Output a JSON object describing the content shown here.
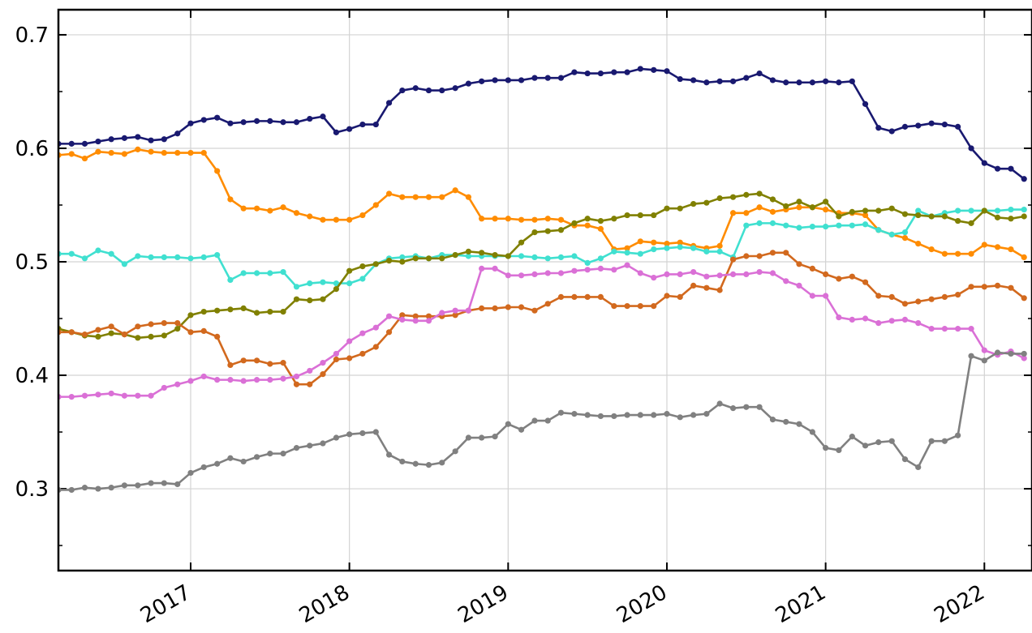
{
  "chart_data": {
    "type": "line",
    "x": [
      2016.167,
      2016.25,
      2016.333,
      2016.417,
      2016.5,
      2016.583,
      2016.667,
      2016.75,
      2016.833,
      2016.917,
      2017,
      2017.083,
      2017.167,
      2017.25,
      2017.333,
      2017.417,
      2017.5,
      2017.583,
      2017.667,
      2017.75,
      2017.833,
      2017.917,
      2018,
      2018.083,
      2018.167,
      2018.25,
      2018.333,
      2018.417,
      2018.5,
      2018.583,
      2018.667,
      2018.75,
      2018.833,
      2018.917,
      2019,
      2019.083,
      2019.167,
      2019.25,
      2019.333,
      2019.417,
      2019.5,
      2019.583,
      2019.667,
      2019.75,
      2019.833,
      2019.917,
      2020,
      2020.083,
      2020.167,
      2020.25,
      2020.333,
      2020.417,
      2020.5,
      2020.583,
      2020.667,
      2020.75,
      2020.833,
      2020.917,
      2021,
      2021.083,
      2021.167,
      2021.25,
      2021.333,
      2021.417,
      2021.5,
      2021.583,
      2021.667,
      2021.75,
      2021.833,
      2021.917,
      2022,
      2022.083,
      2022.167,
      2022.25
    ],
    "series": [
      {
        "color": "#191970",
        "values": [
          0.604,
          0.604,
          0.604,
          0.606,
          0.608,
          0.609,
          0.61,
          0.607,
          0.608,
          0.613,
          0.622,
          0.625,
          0.627,
          0.622,
          0.623,
          0.624,
          0.624,
          0.623,
          0.623,
          0.626,
          0.628,
          0.614,
          0.617,
          0.621,
          0.621,
          0.64,
          0.651,
          0.653,
          0.651,
          0.651,
          0.653,
          0.657,
          0.659,
          0.66,
          0.66,
          0.66,
          0.662,
          0.662,
          0.662,
          0.667,
          0.666,
          0.666,
          0.667,
          0.667,
          0.67,
          0.669,
          0.668,
          0.661,
          0.66,
          0.658,
          0.659,
          0.659,
          0.662,
          0.666,
          0.66,
          0.658,
          0.658,
          0.658,
          0.659,
          0.658,
          0.659,
          0.639,
          0.618,
          0.615,
          0.619,
          0.62,
          0.622,
          0.621,
          0.619,
          0.6,
          0.587,
          0.582,
          0.582,
          0.573
        ]
      },
      {
        "color": "#ff8c00",
        "values": [
          0.594,
          0.595,
          0.591,
          0.597,
          0.596,
          0.595,
          0.599,
          0.597,
          0.596,
          0.596,
          0.596,
          0.596,
          0.58,
          0.555,
          0.547,
          0.547,
          0.545,
          0.548,
          0.543,
          0.54,
          0.537,
          0.537,
          0.537,
          0.541,
          0.55,
          0.56,
          0.557,
          0.557,
          0.557,
          0.557,
          0.563,
          0.557,
          0.538,
          0.538,
          0.538,
          0.537,
          0.537,
          0.538,
          0.537,
          0.532,
          0.532,
          0.529,
          0.511,
          0.512,
          0.518,
          0.517,
          0.516,
          0.517,
          0.514,
          0.512,
          0.514,
          0.543,
          0.543,
          0.548,
          0.544,
          0.546,
          0.548,
          0.548,
          0.546,
          0.543,
          0.543,
          0.541,
          0.528,
          0.524,
          0.521,
          0.516,
          0.511,
          0.507,
          0.507,
          0.507,
          0.515,
          0.513,
          0.511,
          0.504
        ]
      },
      {
        "color": "#40e0d0",
        "values": [
          0.507,
          0.507,
          0.503,
          0.51,
          0.507,
          0.498,
          0.505,
          0.504,
          0.504,
          0.504,
          0.503,
          0.504,
          0.506,
          0.484,
          0.49,
          0.49,
          0.49,
          0.491,
          0.478,
          0.481,
          0.482,
          0.481,
          0.481,
          0.485,
          0.498,
          0.503,
          0.504,
          0.505,
          0.503,
          0.506,
          0.506,
          0.505,
          0.505,
          0.505,
          0.505,
          0.505,
          0.504,
          0.503,
          0.504,
          0.505,
          0.499,
          0.503,
          0.509,
          0.508,
          0.507,
          0.511,
          0.512,
          0.513,
          0.512,
          0.509,
          0.509,
          0.504,
          0.532,
          0.534,
          0.534,
          0.532,
          0.53,
          0.531,
          0.531,
          0.532,
          0.532,
          0.533,
          0.528,
          0.524,
          0.526,
          0.545,
          0.54,
          0.543,
          0.545,
          0.545,
          0.545,
          0.545,
          0.546,
          0.546
        ]
      },
      {
        "color": "#808000",
        "values": [
          0.441,
          0.438,
          0.435,
          0.434,
          0.437,
          0.436,
          0.433,
          0.434,
          0.435,
          0.441,
          0.453,
          0.456,
          0.457,
          0.458,
          0.459,
          0.455,
          0.456,
          0.456,
          0.467,
          0.466,
          0.467,
          0.476,
          0.492,
          0.496,
          0.498,
          0.501,
          0.5,
          0.503,
          0.503,
          0.503,
          0.506,
          0.509,
          0.508,
          0.506,
          0.505,
          0.517,
          0.526,
          0.527,
          0.528,
          0.534,
          0.538,
          0.536,
          0.538,
          0.541,
          0.541,
          0.541,
          0.547,
          0.547,
          0.551,
          0.552,
          0.556,
          0.557,
          0.559,
          0.56,
          0.555,
          0.549,
          0.553,
          0.548,
          0.553,
          0.54,
          0.544,
          0.545,
          0.545,
          0.547,
          0.542,
          0.541,
          0.54,
          0.54,
          0.536,
          0.534,
          0.545,
          0.539,
          0.538,
          0.54
        ]
      },
      {
        "color": "#d2691e",
        "values": [
          0.438,
          0.438,
          0.436,
          0.44,
          0.443,
          0.436,
          0.443,
          0.445,
          0.446,
          0.446,
          0.438,
          0.439,
          0.434,
          0.409,
          0.413,
          0.413,
          0.41,
          0.411,
          0.392,
          0.392,
          0.401,
          0.414,
          0.415,
          0.419,
          0.425,
          0.438,
          0.453,
          0.452,
          0.452,
          0.452,
          0.453,
          0.457,
          0.459,
          0.459,
          0.46,
          0.46,
          0.457,
          0.463,
          0.469,
          0.469,
          0.469,
          0.469,
          0.461,
          0.461,
          0.461,
          0.461,
          0.47,
          0.469,
          0.479,
          0.477,
          0.475,
          0.502,
          0.505,
          0.505,
          0.508,
          0.508,
          0.498,
          0.494,
          0.489,
          0.485,
          0.487,
          0.482,
          0.47,
          0.469,
          0.463,
          0.465,
          0.467,
          0.469,
          0.471,
          0.478,
          0.478,
          0.479,
          0.477,
          0.468
        ]
      },
      {
        "color": "#da70d6",
        "values": [
          0.381,
          0.381,
          0.382,
          0.383,
          0.384,
          0.382,
          0.382,
          0.382,
          0.389,
          0.392,
          0.395,
          0.399,
          0.396,
          0.396,
          0.395,
          0.396,
          0.396,
          0.397,
          0.399,
          0.404,
          0.411,
          0.419,
          0.43,
          0.437,
          0.442,
          0.452,
          0.449,
          0.448,
          0.448,
          0.455,
          0.457,
          0.457,
          0.494,
          0.494,
          0.488,
          0.488,
          0.489,
          0.49,
          0.49,
          0.492,
          0.493,
          0.494,
          0.493,
          0.497,
          0.49,
          0.486,
          0.489,
          0.489,
          0.491,
          0.487,
          0.488,
          0.489,
          0.489,
          0.491,
          0.49,
          0.483,
          0.479,
          0.47,
          0.47,
          0.451,
          0.449,
          0.45,
          0.446,
          0.448,
          0.449,
          0.446,
          0.441,
          0.441,
          0.441,
          0.441,
          0.422,
          0.418,
          0.421,
          0.415
        ]
      },
      {
        "color": "#808080",
        "values": [
          0.299,
          0.299,
          0.301,
          0.3,
          0.301,
          0.303,
          0.303,
          0.305,
          0.305,
          0.304,
          0.314,
          0.319,
          0.322,
          0.327,
          0.324,
          0.328,
          0.331,
          0.331,
          0.336,
          0.338,
          0.34,
          0.345,
          0.348,
          0.349,
          0.35,
          0.33,
          0.324,
          0.322,
          0.321,
          0.323,
          0.333,
          0.345,
          0.345,
          0.346,
          0.357,
          0.352,
          0.36,
          0.36,
          0.367,
          0.366,
          0.365,
          0.364,
          0.364,
          0.365,
          0.365,
          0.365,
          0.366,
          0.363,
          0.365,
          0.366,
          0.375,
          0.371,
          0.372,
          0.372,
          0.361,
          0.359,
          0.357,
          0.35,
          0.336,
          0.334,
          0.346,
          0.338,
          0.341,
          0.342,
          0.326,
          0.319,
          0.342,
          0.342,
          0.347,
          0.417,
          0.413,
          0.42,
          0.419,
          0.419
        ]
      }
    ],
    "xlim": [
      2016.167,
      2022.3
    ],
    "xticks": [
      2017,
      2018,
      2019,
      2020,
      2021,
      2022
    ],
    "ylim": [
      0.2279,
      0.7221
    ],
    "yticks": [
      0.3,
      0.4,
      0.5,
      0.6,
      0.7
    ],
    "yminorticks": [
      0.25,
      0.35,
      0.45,
      0.55,
      0.65
    ],
    "grid": true
  }
}
